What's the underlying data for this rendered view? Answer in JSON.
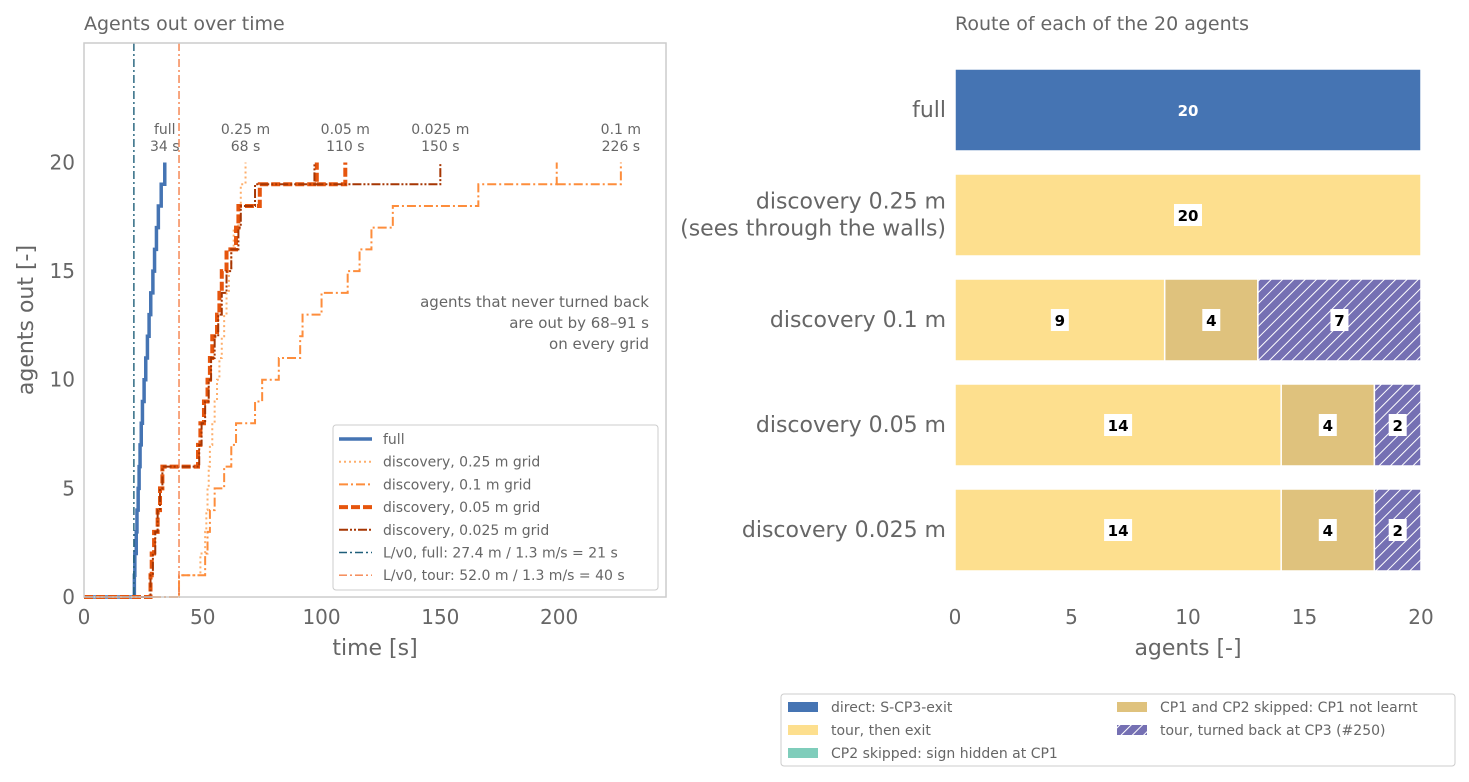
{
  "colors": {
    "text": "#666666",
    "frame": "#cccccc",
    "full": "#4574b3",
    "d025": "#fdae6b",
    "d01": "#fd8d3c",
    "d005": "#e6550d",
    "d0025": "#a63603",
    "ref_full": "#1f5f7a",
    "ref_tour": "#f4804a",
    "direct": "#4574b3",
    "tour": "#fddf8e",
    "cp2": "#7fcdbb",
    "cp1": "#dfc27d",
    "turned": "#7570b3"
  },
  "chart_data": [
    {
      "type": "line",
      "title": "Agents out over time",
      "xlabel": "time [s]",
      "ylabel": "agents out [-]",
      "xlim": [
        0,
        245
      ],
      "ylim": [
        0,
        25.5
      ],
      "xticks": [
        "0",
        "50",
        "100",
        "150",
        "200"
      ],
      "yticks": [
        "0",
        "5",
        "10",
        "15",
        "20"
      ],
      "grid": false,
      "legend_position": "lower-right",
      "series": [
        {
          "name": "full",
          "key": "full",
          "color_key": "full",
          "dash": "solid",
          "width": 3.5,
          "exit_times": [
            21.2,
            21.4,
            22.0,
            22.3,
            22.8,
            23.2,
            23.6,
            24.1,
            24.6,
            25.3,
            26.0,
            26.7,
            27.4,
            28.1,
            29.0,
            29.7,
            30.5,
            31.3,
            32.5,
            34.0
          ]
        },
        {
          "name": "discovery, 0.25 m grid",
          "key": "d025",
          "color_key": "d025",
          "dash": "2,3",
          "width": 2,
          "exit_times": [
            40,
            49,
            51,
            51.5,
            52,
            52.5,
            53,
            54,
            55,
            56,
            57,
            58,
            59,
            60,
            61,
            62,
            63,
            65,
            66,
            68
          ]
        },
        {
          "name": "discovery, 0.1 m grid",
          "key": "d01",
          "color_key": "d01",
          "dash": "9,3,2,3",
          "width": 2,
          "exit_times": [
            40,
            51,
            52,
            53,
            55,
            59,
            62,
            64,
            72,
            75,
            82,
            91,
            92,
            100,
            111,
            116,
            121,
            130,
            166,
            199
          ]
        },
        {
          "name": "discovery, 0.05 m grid",
          "key": "d005",
          "color_key": "d005",
          "dash": "9,3",
          "width": 4,
          "exit_times": [
            28,
            28.5,
            29.5,
            31,
            32,
            33,
            48,
            49,
            50.5,
            52,
            53,
            54,
            56,
            57,
            58,
            60,
            64,
            65,
            74,
            98
          ]
        },
        {
          "name": "discovery, 0.025 m grid",
          "key": "d0025",
          "color_key": "d0025",
          "dash": "9,2,2,2,2,2",
          "width": 2,
          "exit_times": [
            28,
            29,
            30,
            31,
            32,
            33,
            48.5,
            49.5,
            51,
            52.5,
            53.5,
            55,
            56.5,
            58,
            60,
            62,
            65,
            66,
            72,
            97
          ]
        },
        {
          "name": "L/v0, full: 27.4 m / 1.3 m/s = 21 s",
          "key": "ref_full",
          "color_key": "ref_full",
          "dash": "8,3,2,3",
          "width": 1.4,
          "vline": 21
        },
        {
          "name": "L/v0, tour: 52.0 m / 1.3 m/s = 40 s",
          "key": "ref_tour",
          "color_key": "ref_tour",
          "dash": "8,3,2,3",
          "width": 1.4,
          "vline": 40
        }
      ],
      "end_labels": [
        {
          "name": "full",
          "time": "34 s",
          "x": 34,
          "y": 20
        },
        {
          "name": "0.25 m",
          "time": "68 s",
          "x": 68,
          "y": 20
        },
        {
          "name": "0.05 m",
          "time": "110 s",
          "x": 110,
          "y": 20
        },
        {
          "name": "0.025 m",
          "time": "150 s",
          "x": 150,
          "y": 19
        },
        {
          "name": "0.1 m",
          "time": "226 s",
          "x": 226,
          "y": 20
        }
      ],
      "extra_steps": {
        "d005": [
          [
            110,
            19,
            20
          ]
        ],
        "d0025": [
          [
            150,
            19
          ]
        ],
        "d01": [
          [
            226,
            19,
            20
          ]
        ]
      },
      "annotation": [
        "agents that never turned back",
        "are out by 68–91 s",
        "on every grid"
      ]
    },
    {
      "type": "bar",
      "orientation": "horizontal",
      "stacked": true,
      "title": "Route of each of the 20 agents",
      "xlabel": "agents [-]",
      "xlim": [
        0,
        20
      ],
      "xticks": [
        "0",
        "5",
        "10",
        "15",
        "20"
      ],
      "categories": [
        [
          "full"
        ],
        [
          "discovery 0.25 m",
          "(sees through the walls)"
        ],
        [
          "discovery 0.1 m"
        ],
        [
          "discovery 0.05 m"
        ],
        [
          "discovery 0.025 m"
        ]
      ],
      "series": [
        {
          "name": "direct: S-CP3-exit",
          "color_key": "direct",
          "hatch": false,
          "values": [
            20,
            0,
            0,
            0,
            0
          ]
        },
        {
          "name": "tour, then exit",
          "color_key": "tour",
          "hatch": false,
          "values": [
            0,
            20,
            9,
            14,
            14
          ]
        },
        {
          "name": "CP2 skipped: sign hidden at CP1",
          "color_key": "cp2",
          "hatch": false,
          "values": [
            0,
            0,
            0,
            0,
            0
          ]
        },
        {
          "name": "CP1 and CP2 skipped: CP1 not learnt",
          "color_key": "cp1",
          "hatch": false,
          "values": [
            0,
            0,
            4,
            4,
            4
          ]
        },
        {
          "name": "tour, turned back at CP3 (#250)",
          "color_key": "turned",
          "hatch": true,
          "values": [
            0,
            0,
            7,
            2,
            2
          ]
        }
      ],
      "legend_position": "bottom"
    }
  ]
}
